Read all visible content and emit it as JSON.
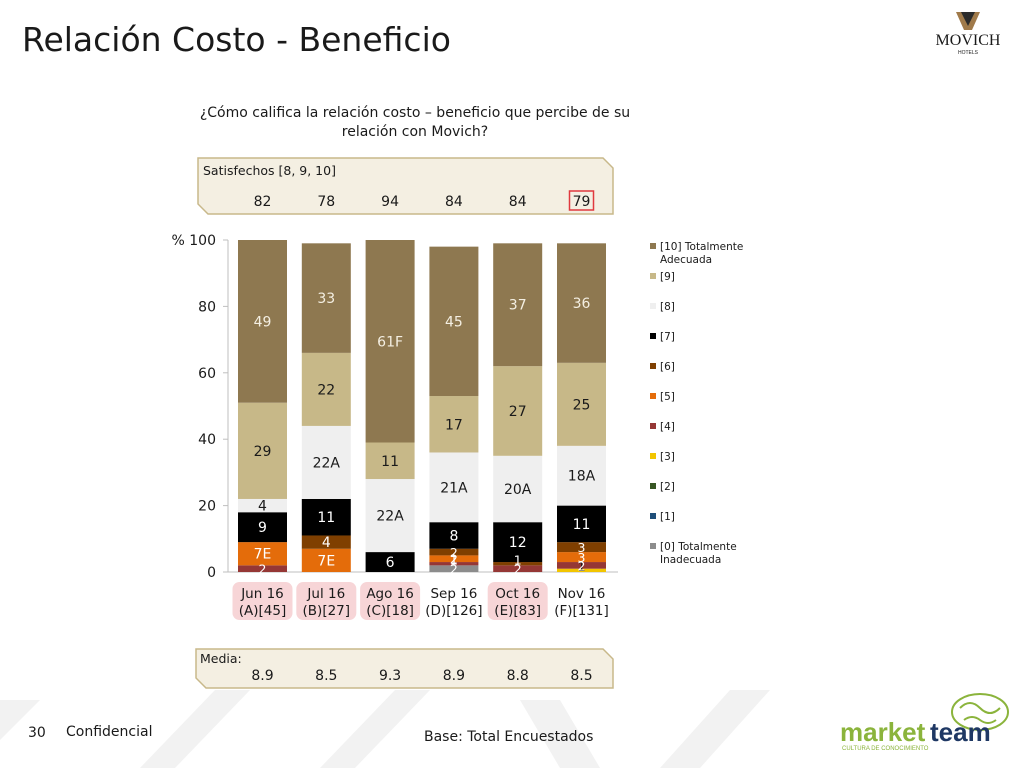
{
  "title": "Relación Costo - Beneficio",
  "brand": {
    "name": "MOVICH",
    "sub": "HOTELS"
  },
  "question": "¿Cómo califica la relación costo – beneficio que percibe de su relación con Movich?",
  "satisfechos": {
    "label": "Satisfechos [8, 9, 10]",
    "values": [
      "82",
      "78",
      "94",
      "84",
      "84",
      "79"
    ],
    "highlight_index": 5
  },
  "media": {
    "label": "Media:",
    "values": [
      "8.9",
      "8.5",
      "9.3",
      "8.9",
      "8.8",
      "8.5"
    ]
  },
  "footer": {
    "page": "30",
    "confidential": "Confidencial",
    "base": "Base: Total Encuestados"
  },
  "marketteam": {
    "name_a": "market",
    "name_b": "team",
    "tagline": "CULTURA DE CONOCIMIENTO"
  },
  "colors": {
    "accent_green": "#8bb43c",
    "accent_navy": "#1f3864",
    "box_fill": "#f4efe2",
    "box_border": "#c8b88a",
    "highlight": "#e0393e",
    "pink": "#f7d5d7"
  },
  "chart_data": {
    "type": "bar",
    "stacked": true,
    "ylabel": "%",
    "ylim": [
      0,
      100
    ],
    "yticks": [
      "0",
      "20",
      "40",
      "60",
      "80",
      "100"
    ],
    "categories": [
      "Jun 16",
      "Jul 16",
      "Ago 16",
      "Sep 16",
      "Oct 16",
      "Nov 16"
    ],
    "category_sub": [
      "(A)[45]",
      "(B)[27]",
      "(C)[18]",
      "(D)[126]",
      "(E)[83]",
      "(F)[131]"
    ],
    "highlighted_categories": [
      0,
      1,
      2,
      4
    ],
    "series": [
      {
        "name": "[0] Totalmente Inadecuada",
        "color": "#8c8c8c",
        "values": [
          0,
          0,
          0,
          2,
          0,
          0
        ],
        "labels": [
          "",
          "",
          "",
          "2",
          "",
          ""
        ]
      },
      {
        "name": "[1]",
        "color": "#1f4e79",
        "values": [
          0,
          0,
          0,
          0,
          0,
          0
        ],
        "labels": [
          "",
          "",
          "",
          "",
          "",
          ""
        ]
      },
      {
        "name": "[2]",
        "color": "#375623",
        "values": [
          0,
          0,
          0,
          0,
          0,
          0
        ],
        "labels": [
          "",
          "",
          "",
          "",
          "",
          ""
        ]
      },
      {
        "name": "[3]",
        "color": "#f2c500",
        "values": [
          0,
          0,
          0,
          0,
          0,
          1
        ],
        "labels": [
          "",
          "",
          "",
          "",
          "",
          "1"
        ]
      },
      {
        "name": "[4]",
        "color": "#953735",
        "values": [
          2,
          0,
          0,
          1,
          2,
          2
        ],
        "labels": [
          "2",
          "",
          "",
          "1",
          "2",
          "2"
        ]
      },
      {
        "name": "[5]",
        "color": "#e46c0a",
        "values": [
          7,
          7,
          0,
          2,
          0,
          3
        ],
        "labels": [
          "7E",
          "7E",
          "",
          "2",
          "",
          "3"
        ]
      },
      {
        "name": "[6]",
        "color": "#7f3f00",
        "values": [
          0,
          4,
          0,
          2,
          1,
          3
        ],
        "labels": [
          "",
          "4",
          "",
          "2",
          "1",
          "3"
        ]
      },
      {
        "name": "[7]",
        "color": "#000000",
        "values": [
          9,
          11,
          6,
          8,
          12,
          11
        ],
        "labels": [
          "9",
          "11",
          "6",
          "8",
          "12",
          "11"
        ]
      },
      {
        "name": "[8]",
        "color": "#efefef",
        "values": [
          4,
          22,
          22,
          21,
          20,
          18
        ],
        "labels": [
          "4",
          "22A",
          "22A",
          "21A",
          "20A",
          "18A"
        ]
      },
      {
        "name": "[9]",
        "color": "#c7b888",
        "values": [
          29,
          22,
          11,
          17,
          27,
          25
        ],
        "labels": [
          "29",
          "22",
          "11",
          "17",
          "27",
          "25"
        ]
      },
      {
        "name": "[10] Totalmente Adecuada",
        "color": "#8e7850",
        "values": [
          49,
          33,
          61,
          45,
          37,
          36
        ],
        "labels": [
          "49",
          "33",
          "61F",
          "45",
          "37",
          "36"
        ]
      }
    ],
    "legend_order_top_to_bottom": [
      "[10] Totalmente Adecuada",
      "[9]",
      "[8]",
      "[7]",
      "[6]",
      "[5]",
      "[4]",
      "[3]",
      "[2]",
      "[1]",
      "[0] Totalmente Inadecuada"
    ],
    "legend_position": "right",
    "grid": false
  }
}
